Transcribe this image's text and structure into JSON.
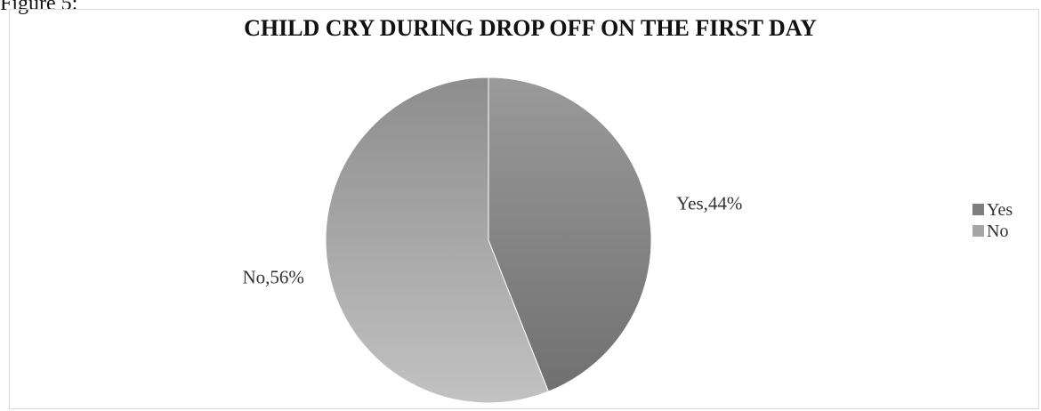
{
  "figure_label": "Figure 5:",
  "chart_data": {
    "type": "pie",
    "title": "CHILD CRY DURING DROP OFF ON THE FIRST DAY",
    "categories": [
      "Yes",
      "No"
    ],
    "values": [
      44,
      56
    ],
    "unit": "%",
    "data_labels": [
      "Yes,44%",
      "No,56%"
    ],
    "legend": {
      "position": "right",
      "entries": [
        "Yes",
        "No"
      ]
    },
    "colors": {
      "Yes": "#7f7f7f",
      "No": "#a6a6a6"
    }
  }
}
